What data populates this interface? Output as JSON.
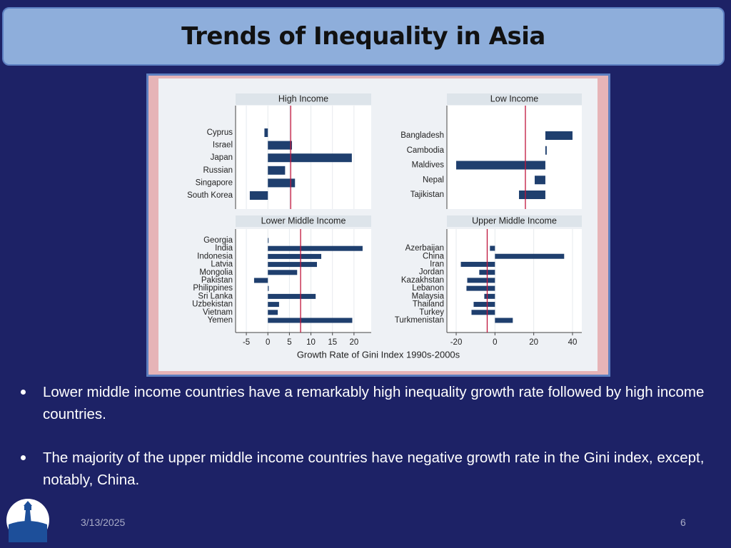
{
  "slide": {
    "title": "Trends of Inequality in Asia",
    "bullets": [
      "Lower middle income countries have a remarkably high inequality growth rate followed by high income countries.",
      "The majority of the upper middle income countries have negative growth rate in the Gini index, except, notably, China."
    ],
    "date": "3/13/2025",
    "page": "6"
  },
  "figure": {
    "xlabel": "Growth Rate of Gini Index  1990s-2000s"
  },
  "chart_data": [
    {
      "type": "bar",
      "orientation": "horizontal",
      "title": "High Income",
      "categories": [
        "Cyprus",
        "Israel",
        "Japan",
        "Russian",
        "Singapore",
        "South Korea"
      ],
      "values": [
        -0.8,
        5.6,
        19.5,
        4,
        6.3,
        -4.2
      ],
      "xlim": [
        -7.5,
        24
      ],
      "ref_line": 5.3,
      "color": "#1f3f6e",
      "ref_color": "#c0143c"
    },
    {
      "type": "bar",
      "orientation": "horizontal",
      "title": "Low Income",
      "categories": [
        "Bangladesh",
        "Cambodia",
        "Maldives",
        "Nepal",
        "Tajikistan"
      ],
      "values": [
        14,
        0.7,
        -46,
        -5.5,
        -13.6
      ],
      "xlim": [
        -50.8,
        18.8
      ],
      "ref_line": -10.3,
      "color": "#1f3f6e",
      "ref_color": "#c0143c"
    },
    {
      "type": "bar",
      "orientation": "horizontal",
      "title": "Lower Middle Income",
      "categories": [
        "Georgia",
        "India",
        "Indonesia",
        "Latvia",
        "Mongolia",
        "Pakistan",
        "Philippines",
        "Sri Lanka",
        "Uzbekistan",
        "Vietnam",
        "Yemen"
      ],
      "values": [
        0.1,
        22,
        12.4,
        11.4,
        6.8,
        -3.2,
        0.2,
        11.1,
        2.6,
        2.3,
        19.6
      ],
      "xlim": [
        -7.5,
        24
      ],
      "xticks": [
        -5,
        0,
        5,
        10,
        15,
        20
      ],
      "ref_line": 7.6,
      "color": "#1f3f6e",
      "ref_color": "#c0143c"
    },
    {
      "type": "bar",
      "orientation": "horizontal",
      "title": "Upper Middle Income",
      "categories": [
        "Azerbaijan",
        "China",
        "Iran",
        "Jordan",
        "Kazakhstan",
        "Lebanon",
        "Malaysia",
        "Thailand",
        "Turkey",
        "Turkmenistan"
      ],
      "values": [
        -2.6,
        35.7,
        -17.6,
        -8.1,
        -14.3,
        -14.7,
        -5.5,
        -11,
        -12.1,
        9.2
      ],
      "xlim": [
        -24.8,
        44.8
      ],
      "xticks": [
        -20,
        0,
        20,
        40
      ],
      "ref_line": -4,
      "color": "#1f3f6e",
      "ref_color": "#c0143c"
    }
  ]
}
